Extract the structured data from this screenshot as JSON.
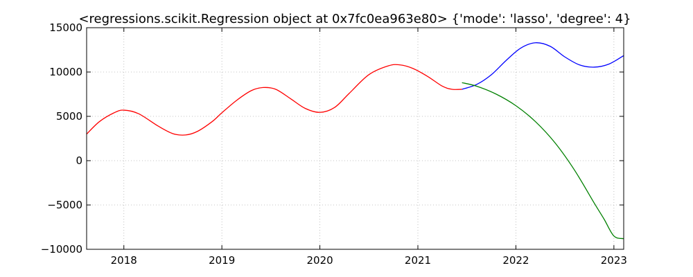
{
  "chart_data": {
    "type": "line",
    "title": "<regressions.scikit.Regression object at 0x7fc0ea963e80> {'mode': 'lasso', 'degree': 4}",
    "xlabel": "",
    "ylabel": "",
    "xlim": [
      2017.62,
      2023.1
    ],
    "ylim": [
      -10000,
      15000
    ],
    "grid": true,
    "x_ticks": [
      2018,
      2019,
      2020,
      2021,
      2022,
      2023
    ],
    "x_tick_labels": [
      "2018",
      "2019",
      "2020",
      "2021",
      "2022",
      "2023"
    ],
    "y_ticks": [
      -10000,
      -5000,
      0,
      5000,
      10000,
      15000
    ],
    "y_tick_labels": [
      "−10000",
      "−5000",
      "0",
      "5000",
      "10000",
      "15000"
    ],
    "series": [
      {
        "color": "#ff0000",
        "x": [
          2017.62,
          2017.75,
          2017.9,
          2018.0,
          2018.15,
          2018.35,
          2018.5,
          2018.63,
          2018.75,
          2018.9,
          2019.0,
          2019.15,
          2019.3,
          2019.42,
          2019.55,
          2019.7,
          2019.85,
          2020.0,
          2020.15,
          2020.3,
          2020.5,
          2020.7,
          2020.82,
          2020.95,
          2021.1,
          2021.25,
          2021.35,
          2021.45
        ],
        "y": [
          3000,
          4400,
          5400,
          5700,
          5300,
          3900,
          3050,
          2900,
          3300,
          4400,
          5400,
          6800,
          7900,
          8250,
          8050,
          7000,
          5900,
          5450,
          6000,
          7600,
          9700,
          10700,
          10800,
          10400,
          9500,
          8400,
          8050,
          8050
        ]
      },
      {
        "color": "#0000ff",
        "x": [
          2021.45,
          2021.6,
          2021.75,
          2021.9,
          2022.05,
          2022.2,
          2022.35,
          2022.5,
          2022.65,
          2022.8,
          2022.95,
          2023.1
        ],
        "y": [
          8050,
          8600,
          9700,
          11300,
          12700,
          13300,
          12900,
          11700,
          10800,
          10550,
          10900,
          11850
        ]
      },
      {
        "color": "#008000",
        "x": [
          2021.45,
          2021.6,
          2021.8,
          2022.0,
          2022.2,
          2022.4,
          2022.6,
          2022.8,
          2022.9,
          2023.0,
          2023.1
        ],
        "y": [
          8800,
          8400,
          7500,
          6200,
          4400,
          2000,
          -1100,
          -4800,
          -6600,
          -8500,
          -8800
        ]
      }
    ]
  }
}
